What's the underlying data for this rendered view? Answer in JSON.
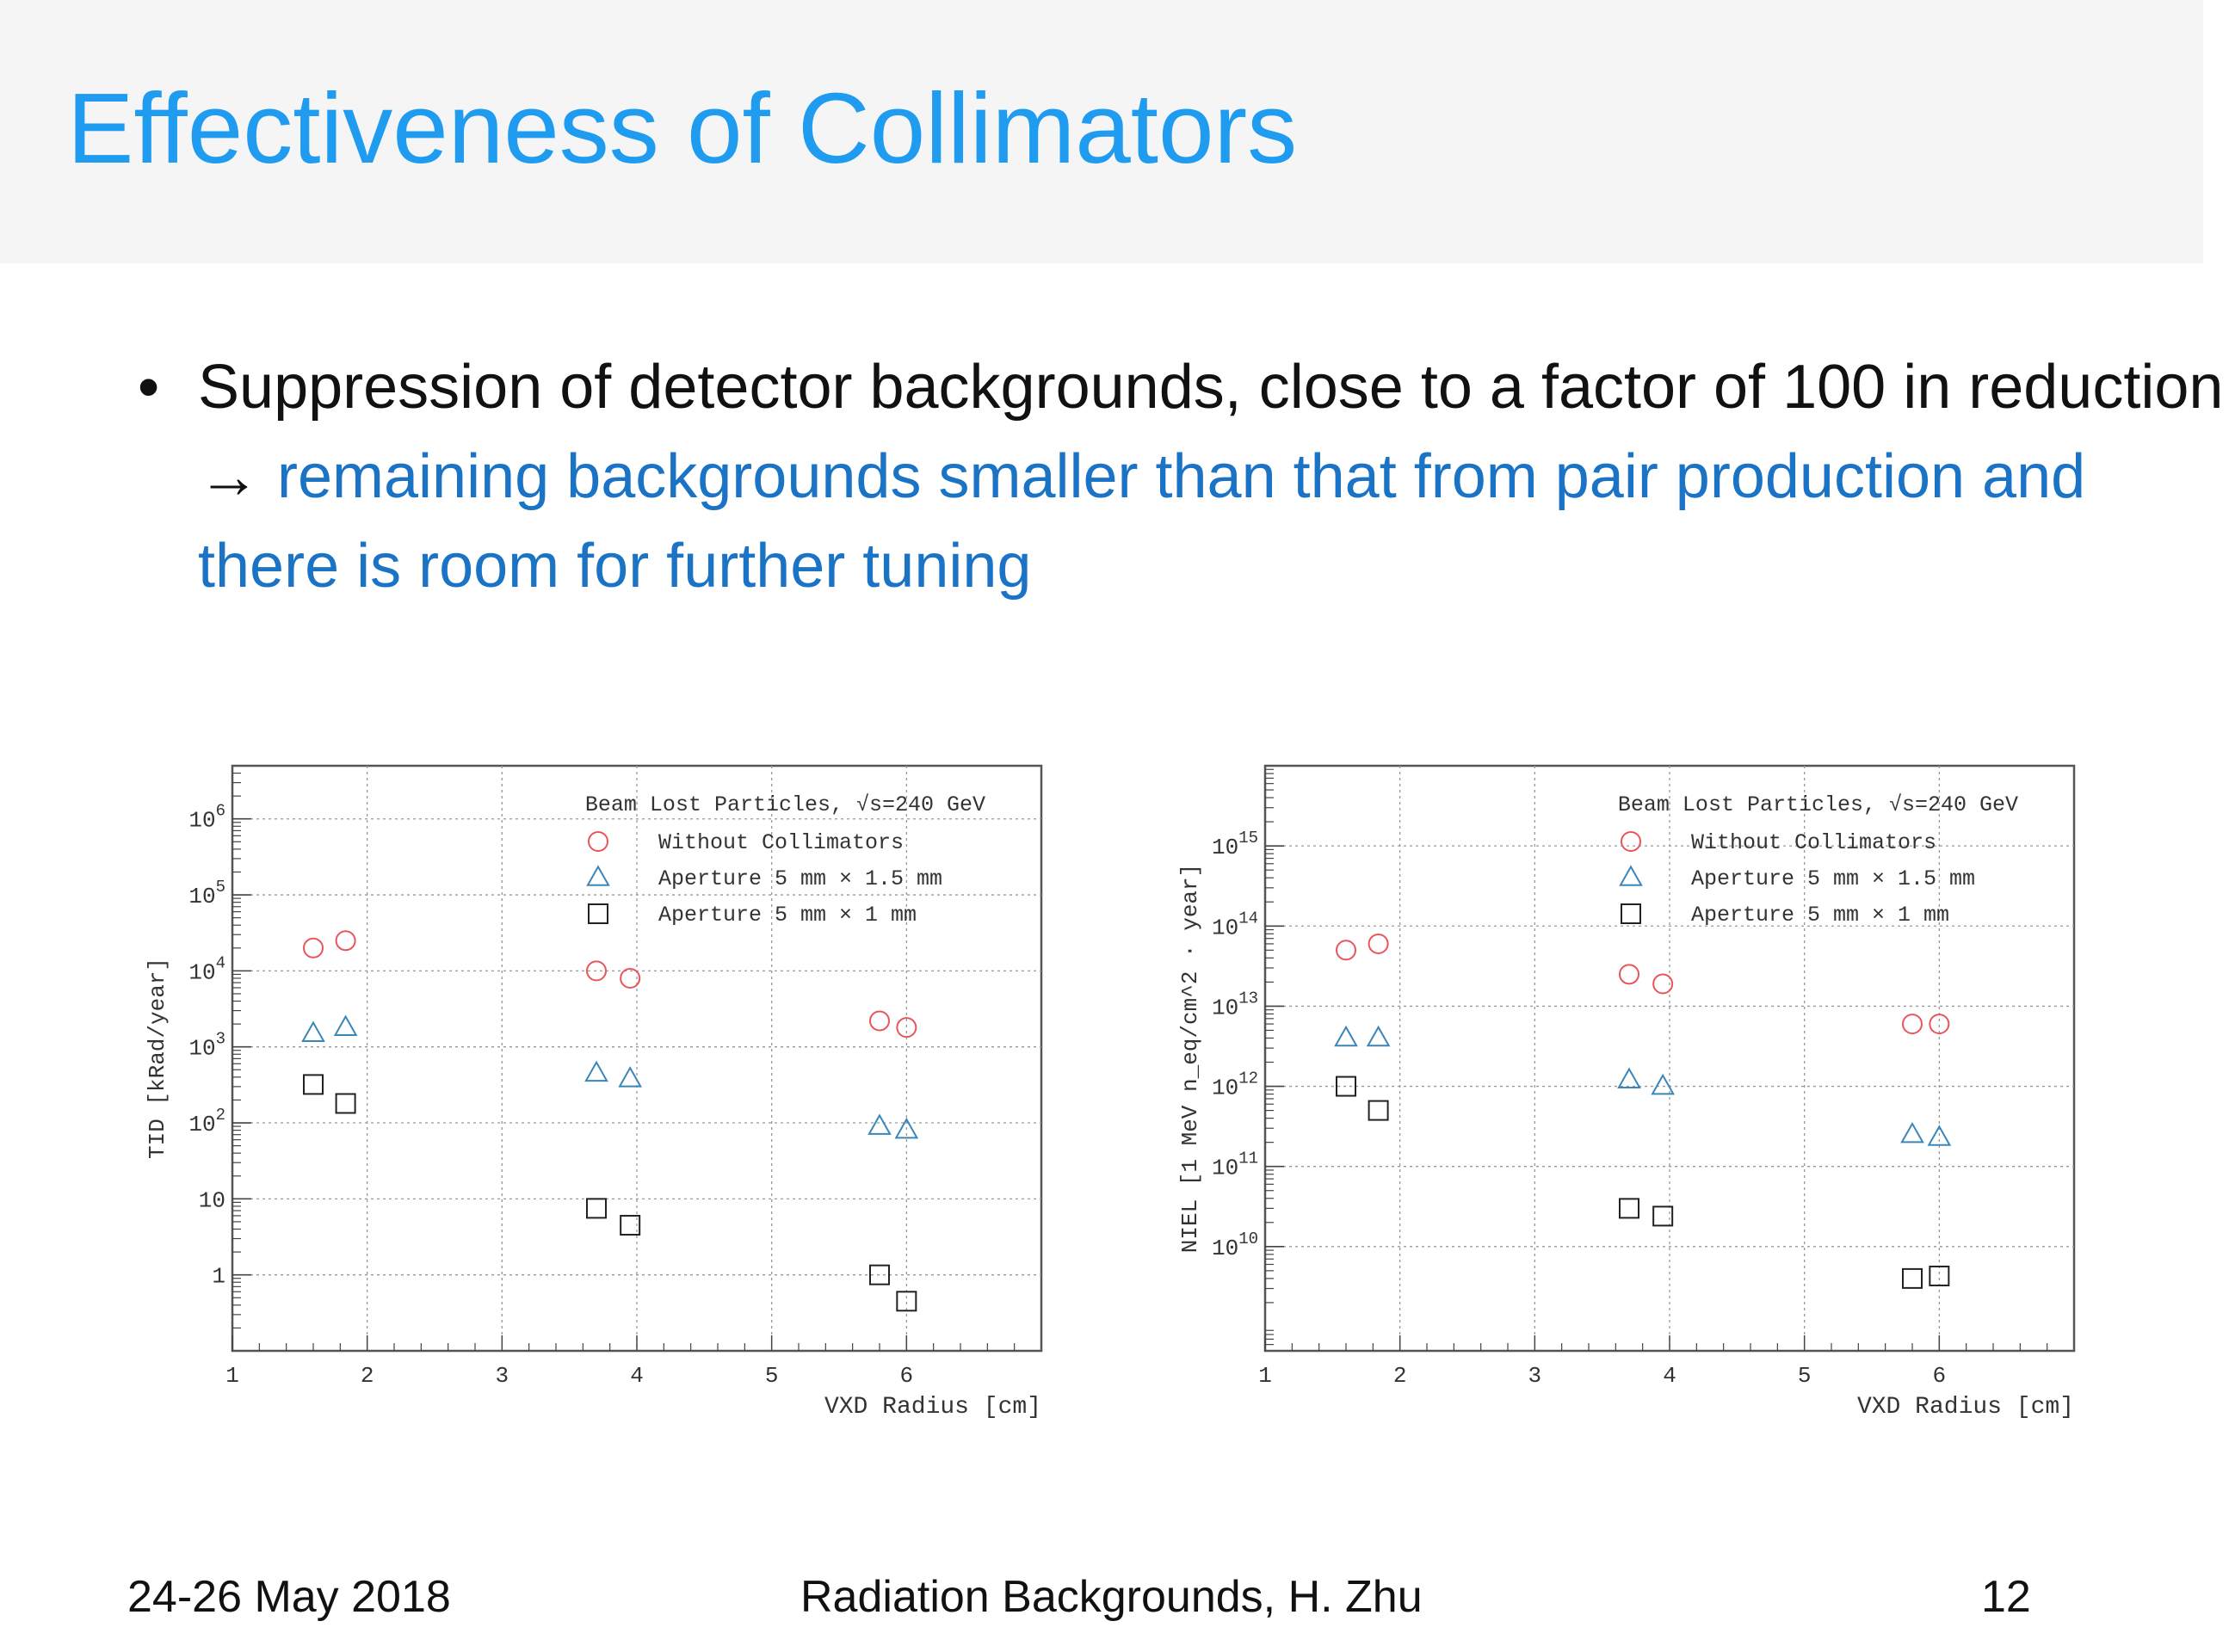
{
  "slide": {
    "title": "Effectiveness of Collimators",
    "bullet": {
      "marker": "•",
      "text_plain": "Suppression of detector backgrounds, close to a factor of 100 in reduction → ",
      "text_highlight": "remaining backgrounds smaller than that from pair production and there is room for further tuning"
    },
    "footer": {
      "date": "24-26 May 2018",
      "center": "Radiation Backgrounds, H. Zhu",
      "page": "12"
    }
  },
  "chart_data": [
    {
      "type": "scatter",
      "ylabel": "TID [kRad/year]",
      "xlabel": "VXD Radius [cm]",
      "legend_title": "Beam Lost Particles, √s=240 GeV",
      "xlim": [
        1,
        7
      ],
      "ylim": [
        0.1,
        5000000
      ],
      "yscale": "log",
      "grid": true,
      "legend_position": "top-right",
      "xticks": [
        "1",
        "2",
        "3",
        "4",
        "5",
        "6"
      ],
      "yticks": [
        {
          "v": 1000000,
          "b": "10",
          "e": "6"
        },
        {
          "v": 100000,
          "b": "10",
          "e": "5"
        },
        {
          "v": 10000,
          "b": "10",
          "e": "4"
        },
        {
          "v": 1000,
          "b": "10",
          "e": "3"
        },
        {
          "v": 100,
          "b": "10",
          "e": "2"
        },
        {
          "v": 10,
          "b": "10",
          "e": ""
        },
        {
          "v": 1,
          "b": "1",
          "e": ""
        }
      ],
      "series": [
        {
          "name": "Without Collimators",
          "marker": "circle",
          "color": "#e8555a",
          "x": [
            1.6,
            1.84,
            3.7,
            3.95,
            5.8,
            6.0
          ],
          "y": [
            20000,
            25000,
            10000,
            8000,
            2200,
            1800
          ]
        },
        {
          "name": "Aperture 5 mm × 1.5 mm",
          "marker": "triangle",
          "color": "#3b86b8",
          "x": [
            1.6,
            1.84,
            3.7,
            3.95,
            5.8,
            6.0
          ],
          "y": [
            1500,
            1800,
            450,
            380,
            90,
            80
          ]
        },
        {
          "name": "Aperture 5 mm × 1 mm",
          "marker": "square",
          "color": "#222222",
          "x": [
            1.6,
            1.84,
            3.7,
            3.95,
            5.8,
            6.0
          ],
          "y": [
            320,
            180,
            7.5,
            4.5,
            1.0,
            0.45
          ]
        }
      ]
    },
    {
      "type": "scatter",
      "ylabel": "NIEL [1 MeV n_eq/cm^2 · year]",
      "xlabel": "VXD Radius [cm]",
      "legend_title": "Beam Lost Particles, √s=240 GeV",
      "xlim": [
        1,
        7
      ],
      "ylim": [
        500000000,
        10000000000000000
      ],
      "yscale": "log",
      "grid": true,
      "legend_position": "top-right",
      "xticks": [
        "1",
        "2",
        "3",
        "4",
        "5",
        "6"
      ],
      "yticks": [
        {
          "v": 1000000000000000,
          "b": "10",
          "e": "15"
        },
        {
          "v": 100000000000000,
          "b": "10",
          "e": "14"
        },
        {
          "v": 10000000000000,
          "b": "10",
          "e": "13"
        },
        {
          "v": 1000000000000,
          "b": "10",
          "e": "12"
        },
        {
          "v": 100000000000,
          "b": "10",
          "e": "11"
        },
        {
          "v": 10000000000,
          "b": "10",
          "e": "10"
        }
      ],
      "series": [
        {
          "name": "Without Collimators",
          "marker": "circle",
          "color": "#e8555a",
          "x": [
            1.6,
            1.84,
            3.7,
            3.95,
            5.8,
            6.0
          ],
          "y": [
            50000000000000,
            60000000000000,
            25000000000000,
            19000000000000,
            6000000000000,
            6000000000000
          ]
        },
        {
          "name": "Aperture 5 mm × 1.5 mm",
          "marker": "triangle",
          "color": "#3b86b8",
          "x": [
            1.6,
            1.84,
            3.7,
            3.95,
            5.8,
            6.0
          ],
          "y": [
            4000000000000,
            4000000000000,
            1200000000000,
            1000000000000,
            250000000000,
            230000000000
          ]
        },
        {
          "name": "Aperture 5 mm × 1 mm",
          "marker": "square",
          "color": "#222222",
          "x": [
            1.6,
            1.84,
            3.7,
            3.95,
            5.8,
            6.0
          ],
          "y": [
            1000000000000,
            500000000000,
            30000000000,
            24000000000,
            4000000000,
            4300000000
          ]
        }
      ]
    }
  ]
}
